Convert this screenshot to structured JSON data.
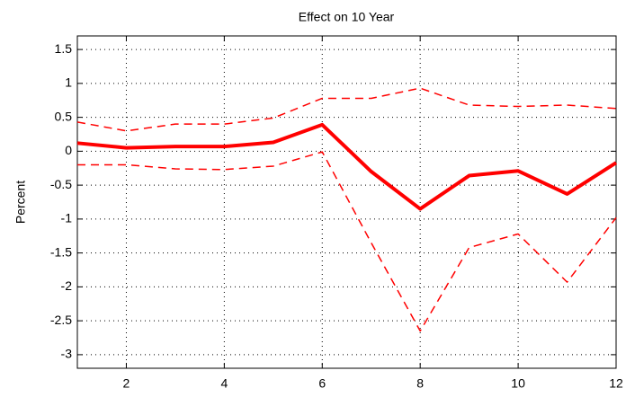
{
  "chart_data": {
    "type": "line",
    "title": "Effect on 10 Year",
    "y_label": "Percent",
    "x": [
      1,
      2,
      3,
      4,
      5,
      6,
      7,
      8,
      9,
      10,
      11,
      12
    ],
    "series": [
      {
        "color": "#ff0000",
        "style": "solid",
        "width": 4,
        "values": [
          0.12,
          0.05,
          0.07,
          0.07,
          0.13,
          0.39,
          -0.3,
          -0.85,
          -0.36,
          -0.29,
          -0.63,
          -0.17
        ]
      },
      {
        "color": "#ff0000",
        "style": "dashed",
        "width": 1.5,
        "values": [
          0.43,
          0.3,
          0.4,
          0.4,
          0.49,
          0.78,
          0.78,
          0.93,
          0.68,
          0.66,
          0.68,
          0.63
        ]
      },
      {
        "color": "#ff0000",
        "style": "dashed",
        "width": 1.5,
        "values": [
          -0.2,
          -0.2,
          -0.26,
          -0.27,
          -0.22,
          -0.01,
          -1.35,
          -2.65,
          -1.42,
          -1.22,
          -1.93,
          -0.98
        ]
      }
    ],
    "xlim": [
      1,
      12
    ],
    "xticks": [
      2,
      4,
      6,
      8,
      10,
      12
    ],
    "ylim": [
      -3.2,
      1.7
    ],
    "yticks": [
      -3,
      -2.5,
      -2,
      -1.5,
      -1,
      -0.5,
      0,
      0.5,
      1,
      1.5
    ],
    "grid": true
  }
}
